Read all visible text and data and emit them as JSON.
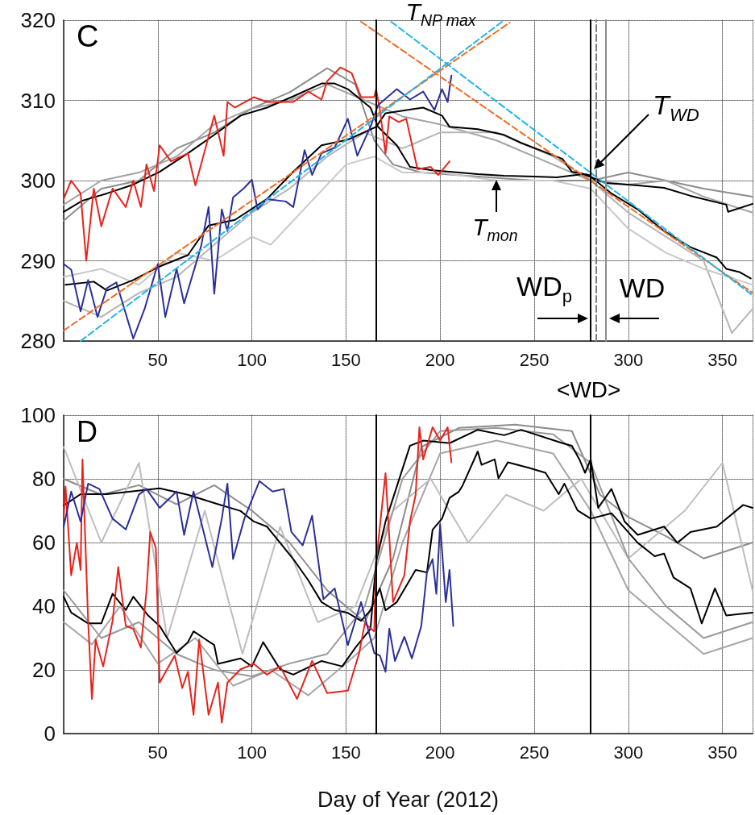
{
  "chart_data": [
    {
      "type": "line",
      "xlim": [
        0,
        366
      ],
      "xticks": [
        50,
        100,
        150,
        200,
        250,
        300,
        350
      ],
      "ylim": [
        280,
        320
      ],
      "yticks": [
        280,
        290,
        300,
        310,
        320
      ],
      "grid": true,
      "marker": "none",
      "line_style": "solid",
      "annotations": [
        "C",
        {
          "text": "T$_{NP max}$",
          "x": 201,
          "y": 314.5
        },
        {
          "text": "T$_{WD}$",
          "x": 280,
          "y": 301
        },
        {
          "text": "T$_{mon}$",
          "x": 230,
          "y": 300.5
        }
      ],
      "ref_lines": [
        {
          "axis": "x",
          "value": 166,
          "color": "#000000",
          "line_style": "solid"
        },
        {
          "axis": "x",
          "value": 280,
          "label": "WD$_{p}$",
          "color": "#000000",
          "line_style": "solid"
        },
        {
          "axis": "x",
          "value": 283,
          "color": "#7f7f7f",
          "line_style": "dashed"
        },
        {
          "axis": "x",
          "value": 288,
          "label": "WD",
          "color": "#8c8c8c",
          "line_style": "solid"
        }
      ],
      "series": [
        {
          "color": "#8c8c8c",
          "x": [
            0,
            20,
            40,
            60,
            80,
            100,
            120,
            140,
            155,
            165,
            175,
            190,
            220,
            250,
            280,
            300,
            320,
            340,
            366
          ],
          "values": [
            295,
            299,
            300,
            304,
            306,
            309,
            311,
            314,
            312,
            305,
            302,
            301,
            300.5,
            300,
            300,
            301,
            300,
            299,
            298
          ]
        },
        {
          "color": "#a3a3a3",
          "x": [
            0,
            20,
            40,
            60,
            80,
            100,
            120,
            140,
            160,
            180,
            200,
            230,
            260,
            280,
            300,
            320,
            340,
            366
          ],
          "values": [
            297,
            300,
            301,
            303,
            307,
            309,
            310,
            312,
            310,
            308,
            307,
            305,
            302,
            300,
            299.5,
            300,
            298,
            296
          ]
        },
        {
          "color": "#b5b5b5",
          "x": [
            0,
            20,
            40,
            60,
            80,
            100,
            120,
            140,
            160,
            180,
            200,
            230,
            260,
            280,
            300,
            320,
            340,
            355,
            366
          ],
          "values": [
            285,
            283,
            286,
            288,
            292,
            296,
            299,
            303,
            306,
            304,
            306,
            306,
            303,
            300,
            296,
            293,
            290,
            281,
            284
          ]
        },
        {
          "color": "#c8c8c8",
          "x": [
            0,
            20,
            40,
            60,
            80,
            100,
            110,
            130,
            150,
            165,
            180,
            200,
            230,
            260,
            280,
            300,
            320,
            340,
            366
          ],
          "values": [
            288,
            289,
            287,
            291,
            290,
            293,
            292,
            297,
            302,
            303,
            301,
            301,
            300,
            300,
            299,
            294,
            291,
            289,
            287
          ]
        },
        {
          "color": "#000000",
          "x": [
            0,
            10,
            23,
            37,
            51,
            66,
            80,
            94,
            108,
            122,
            137,
            144,
            151,
            163,
            167,
            177,
            184,
            195,
            205,
            220,
            234,
            250,
            262,
            276,
            288,
            305,
            319,
            333,
            352,
            353,
            366
          ],
          "values": [
            296.1,
            297.5,
            298.4,
            299.5,
            301.1,
            303.4,
            305.7,
            308.1,
            309.1,
            310.5,
            312.1,
            312.1,
            311.4,
            309.1,
            306.7,
            304.4,
            301.7,
            301.3,
            301.1,
            300.8,
            300.6,
            300.5,
            300.4,
            300.8,
            299.7,
            299.4,
            299.1,
            298.1,
            297.0,
            296.1,
            297.1
          ]
        },
        {
          "color": "#000000",
          "x": [
            1,
            16,
            23,
            37,
            51,
            66,
            77,
            91,
            108,
            122,
            137,
            151,
            166,
            171,
            191,
            201,
            205,
            220,
            234,
            243,
            265,
            270,
            279,
            291,
            305,
            319,
            333,
            347,
            352,
            359,
            365
          ],
          "values": [
            287.0,
            287.4,
            286.3,
            287.6,
            289.3,
            290.7,
            294.4,
            295.1,
            297.7,
            301.1,
            304.4,
            305.1,
            306.7,
            308.4,
            309.1,
            308.1,
            306.7,
            306.4,
            305.7,
            304.7,
            302.7,
            301.1,
            300.7,
            298.4,
            296.4,
            293.7,
            291.7,
            290.4,
            289.0,
            288.6,
            287.8
          ]
        },
        {
          "color": "#e8231c",
          "x": [
            0,
            4,
            9,
            12,
            16,
            20,
            26,
            33,
            37,
            41,
            44,
            48,
            51,
            57,
            66,
            70,
            80,
            85,
            87,
            91,
            101,
            108,
            122,
            130,
            137,
            140,
            147,
            153,
            158,
            165,
            166,
            168,
            171,
            173,
            178,
            182,
            188,
            195,
            199,
            205
          ],
          "values": [
            297.7,
            300.0,
            298.4,
            290.0,
            299.0,
            294.3,
            299.0,
            296.7,
            300.0,
            296.7,
            302.0,
            298.7,
            304.4,
            302.4,
            303.4,
            299.4,
            308.1,
            303.1,
            309.8,
            309.1,
            310.4,
            309.8,
            309.8,
            311.1,
            310.1,
            312.4,
            314.1,
            313.4,
            310.4,
            310.4,
            311.4,
            308.8,
            303.4,
            308.0,
            307.3,
            307.7,
            301.4,
            301.7,
            300.7,
            302.4
          ]
        },
        {
          "color": "#2b2f9a",
          "x": [
            0,
            4,
            9,
            13,
            18,
            23,
            28,
            37,
            43,
            50,
            54,
            60,
            64,
            73,
            77,
            80,
            84,
            87,
            90,
            96,
            100,
            103,
            108,
            118,
            122,
            128,
            132,
            137,
            144,
            151,
            156,
            163,
            167,
            177,
            184,
            191,
            197,
            201,
            204,
            206
          ],
          "values": [
            289.6,
            288.9,
            283.7,
            287.6,
            283.0,
            286.6,
            287.3,
            280.3,
            284.0,
            289.6,
            283.0,
            289.0,
            284.7,
            291.8,
            296.7,
            285.9,
            296.4,
            293.7,
            297.9,
            299.1,
            300.1,
            296.4,
            297.7,
            297.4,
            296.7,
            303.8,
            300.7,
            303.4,
            304.1,
            307.7,
            303.1,
            306.7,
            309.4,
            311.4,
            310.1,
            311.1,
            308.8,
            311.4,
            309.8,
            313.1
          ]
        },
        {
          "type": "line",
          "line_style": "dashed",
          "color": "#f26b21",
          "x": [
            0,
            237
          ],
          "values": [
            281.3,
            319.7
          ]
        },
        {
          "type": "line",
          "line_style": "dashed",
          "color": "#1fb4ea",
          "x": [
            9,
            234
          ],
          "values": [
            280,
            320
          ]
        },
        {
          "type": "line",
          "line_style": "dashed",
          "color": "#f26b21",
          "x": [
            158,
            366
          ],
          "values": [
            319.8,
            286.0
          ]
        },
        {
          "type": "line",
          "line_style": "dashed",
          "color": "#1fb4ea",
          "x": [
            174,
            366
          ],
          "values": [
            319.8,
            285.7
          ]
        }
      ]
    },
    {
      "type": "line",
      "xlim": [
        0,
        366
      ],
      "xticks": [
        50,
        100,
        150,
        200,
        250,
        300,
        350
      ],
      "ylim": [
        0,
        100
      ],
      "yticks": [
        0,
        20,
        40,
        60,
        80,
        100
      ],
      "grid": true,
      "marker": "none",
      "line_style": "solid",
      "xlabel": "Day of Year (2012)",
      "annotations": [
        "D"
      ],
      "ref_lines": [
        {
          "axis": "x",
          "value": 166,
          "color": "#000000",
          "line_style": "solid"
        },
        {
          "axis": "x",
          "value": 280,
          "label": "<WD>",
          "color": "#000000",
          "line_style": "solid"
        }
      ],
      "series": [
        {
          "color": "#8c8c8c",
          "x": [
            0,
            20,
            40,
            60,
            80,
            100,
            120,
            140,
            160,
            175,
            190,
            210,
            240,
            270,
            285,
            300,
            320,
            340,
            366
          ],
          "values": [
            80,
            75,
            78,
            72,
            78,
            70,
            60,
            45,
            35,
            55,
            90,
            96,
            97,
            95,
            75,
            68,
            62,
            55,
            60
          ]
        },
        {
          "color": "#a6a6a6",
          "x": [
            0,
            15,
            30,
            50,
            70,
            90,
            110,
            130,
            150,
            165,
            180,
            200,
            230,
            260,
            280,
            300,
            320,
            340,
            366
          ],
          "values": [
            35,
            28,
            40,
            22,
            30,
            15,
            20,
            12,
            22,
            30,
            60,
            88,
            92,
            88,
            70,
            45,
            35,
            25,
            30
          ]
        },
        {
          "color": "#bdbdbd",
          "x": [
            0,
            20,
            40,
            55,
            75,
            95,
            115,
            135,
            155,
            175,
            195,
            215,
            235,
            255,
            275,
            300,
            330,
            350,
            366
          ],
          "values": [
            90,
            60,
            85,
            30,
            70,
            25,
            65,
            35,
            40,
            70,
            80,
            60,
            75,
            70,
            80,
            55,
            70,
            85,
            45
          ]
        },
        {
          "color": "#999999",
          "x": [
            0,
            20,
            40,
            60,
            80,
            100,
            120,
            140,
            160,
            180,
            200,
            230,
            260,
            280,
            300,
            320,
            340,
            366
          ],
          "values": [
            45,
            30,
            35,
            25,
            20,
            18,
            22,
            25,
            40,
            80,
            95,
            96,
            94,
            85,
            55,
            40,
            30,
            35
          ]
        },
        {
          "color": "#000000",
          "x": [
            0,
            9,
            23,
            51,
            66,
            80,
            94,
            101,
            108,
            115,
            122,
            130,
            137,
            144,
            151,
            158,
            163,
            168,
            171,
            177,
            187,
            193,
            196,
            201,
            205,
            210,
            212,
            220,
            222,
            229,
            231,
            236,
            247,
            256,
            263,
            266,
            273,
            280,
            291,
            305,
            314,
            319,
            324,
            333,
            339,
            346,
            352,
            366
          ],
          "values": [
            71.6,
            75.2,
            75.2,
            77.0,
            75.0,
            72.4,
            69.9,
            66.6,
            65.0,
            59.9,
            54.8,
            48.1,
            41.3,
            38.8,
            37.9,
            35.4,
            38.7,
            45.6,
            38.7,
            41.3,
            51.4,
            50.6,
            64.0,
            67.5,
            74.0,
            76.0,
            78.0,
            88.6,
            84.4,
            86.1,
            80.2,
            85.2,
            83.5,
            81.9,
            75.2,
            78.5,
            70.1,
            67.5,
            69.2,
            59.9,
            55.7,
            56.5,
            49.0,
            45.6,
            34.6,
            45.6,
            37.1,
            38.0
          ]
        },
        {
          "color": "#000000",
          "x": [
            0,
            4,
            13,
            20,
            26,
            33,
            37,
            45,
            51,
            60,
            66,
            69,
            80,
            82,
            94,
            100,
            106,
            115,
            122,
            137,
            148,
            155,
            163,
            166,
            171,
            184,
            191,
            205,
            220,
            234,
            243,
            265,
            270,
            274,
            277,
            280,
            284,
            291,
            298,
            305,
            319,
            326,
            333,
            347,
            361,
            366
          ],
          "values": [
            43.0,
            38.0,
            34.6,
            34.6,
            43.9,
            38.8,
            43.0,
            37.0,
            33.8,
            25.3,
            28.7,
            32.1,
            27.8,
            21.9,
            23.6,
            21.1,
            28.7,
            20.2,
            18.5,
            22.8,
            21.1,
            27.0,
            32.9,
            53.9,
            66.6,
            90.4,
            92.0,
            91.2,
            95.4,
            93.7,
            95.4,
            91.2,
            90.4,
            86.1,
            81.9,
            86.1,
            70.9,
            76.8,
            66.6,
            62.4,
            65.0,
            59.9,
            63.3,
            65.0,
            71.8,
            70.9
          ]
        },
        {
          "color": "#e8231c",
          "x": [
            0,
            1,
            4,
            7,
            9,
            10,
            13,
            15,
            17,
            21,
            26,
            29,
            33,
            37,
            41,
            44,
            46,
            49,
            51,
            59,
            63,
            66,
            69,
            72,
            77,
            82,
            84,
            87,
            94,
            101,
            108,
            115,
            124,
            132,
            140,
            151,
            157,
            160,
            165,
            166,
            171,
            175,
            181,
            184,
            187,
            189,
            191,
            196,
            200,
            204,
            206
          ],
          "values": [
            67.5,
            77.6,
            49.7,
            59.9,
            51.4,
            86.1,
            35.4,
            10.9,
            29.5,
            21.1,
            35.4,
            52.3,
            33.8,
            32.9,
            27.0,
            44.7,
            63.3,
            58.2,
            16.0,
            24.5,
            14.3,
            19.4,
            5.9,
            29.5,
            5.9,
            16.0,
            3.4,
            16.0,
            20.2,
            21.9,
            18.5,
            21.1,
            10.9,
            22.8,
            12.7,
            13.5,
            25.3,
            34.6,
            32.1,
            53.9,
            81.8,
            41.3,
            49.7,
            66.6,
            75.0,
            96.2,
            86.1,
            96.2,
            92.0,
            96.2,
            85.2
          ]
        },
        {
          "color": "#2b2f9a",
          "x": [
            0,
            4,
            9,
            13,
            19,
            26,
            33,
            40,
            44,
            51,
            60,
            64,
            69,
            79,
            84,
            87,
            90,
            96,
            104,
            111,
            117,
            121,
            127,
            132,
            138,
            144,
            151,
            158,
            165,
            168,
            171,
            173,
            176,
            181,
            185,
            190,
            193,
            196,
            198,
            200,
            203,
            205,
            207
          ],
          "values": [
            65.0,
            76.0,
            66.6,
            78.5,
            76.8,
            67.5,
            64.1,
            75.1,
            76.8,
            70.9,
            76.0,
            62.4,
            76.0,
            52.3,
            67.5,
            78.5,
            54.8,
            67.5,
            79.3,
            76.0,
            76.8,
            63.3,
            59.1,
            68.4,
            42.2,
            45.6,
            27.8,
            41.3,
            25.3,
            24.5,
            19.4,
            32.9,
            22.8,
            30.4,
            23.6,
            33.8,
            50.6,
            54.8,
            43.9,
            65.8,
            41.3,
            51.4,
            33.8
          ]
        }
      ]
    }
  ]
}
